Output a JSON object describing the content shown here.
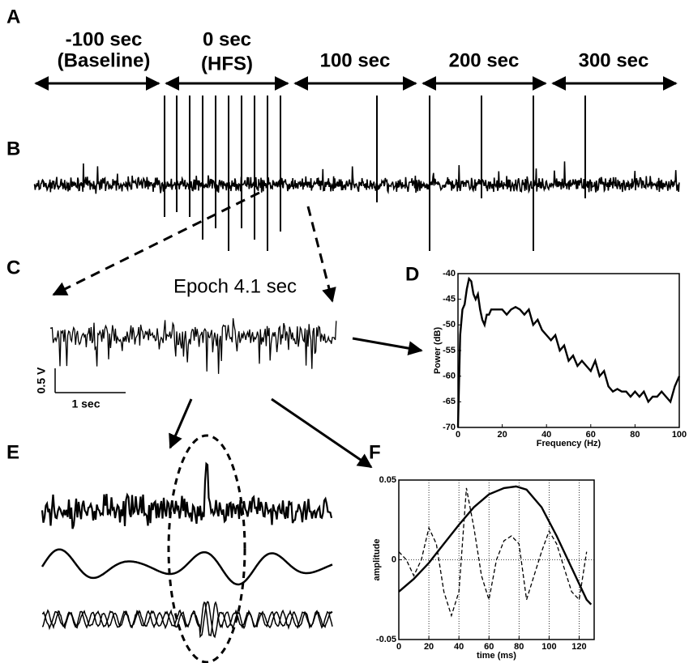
{
  "panel_labels": [
    "A",
    "B",
    "C",
    "D",
    "E",
    "F"
  ],
  "periods": [
    [
      "-100 sec",
      "(Baseline)"
    ],
    [
      "0 sec",
      "(HFS)"
    ],
    [
      "100 sec"
    ],
    [
      "200 sec"
    ],
    [
      "300 sec"
    ]
  ],
  "epoch_label": "Epoch 4.1 sec",
  "scale_bar": {
    "y": "0.5 V",
    "x": "1 sec"
  },
  "chart_data": [
    {
      "type": "line",
      "ylabel": "Power (dB)",
      "xlabel": "Frequency (Hz)",
      "xlim": [
        0,
        100
      ],
      "ylim": [
        -70,
        -40
      ],
      "xticks": [
        0,
        20,
        40,
        60,
        80,
        100
      ],
      "yticks": [
        -70,
        -65,
        -60,
        -55,
        -50,
        -45,
        -40
      ],
      "grid": false,
      "series": [
        {
          "color": "#000000",
          "linestyle": "solid",
          "x": [
            0,
            1,
            2,
            3,
            4,
            5,
            6,
            7,
            8,
            9,
            10,
            11,
            12,
            13,
            14,
            15,
            17,
            20,
            22,
            24,
            26,
            28,
            30,
            32,
            34,
            36,
            38,
            40,
            42,
            44,
            46,
            48,
            50,
            52,
            54,
            56,
            58,
            60,
            62,
            64,
            66,
            68,
            70,
            72,
            74,
            76,
            78,
            80,
            82,
            84,
            86,
            88,
            90,
            92,
            94,
            96,
            98,
            100
          ],
          "values": [
            -70,
            -52,
            -47,
            -46,
            -43,
            -41,
            -41.5,
            -44,
            -45,
            -44,
            -47,
            -49,
            -50,
            -48,
            -48,
            -47,
            -47,
            -47,
            -48,
            -47,
            -46.5,
            -47,
            -48,
            -47,
            -50,
            -49,
            -51,
            -52,
            -53,
            -52,
            -55,
            -54,
            -57,
            -56,
            -58,
            -57,
            -58,
            -59,
            -57,
            -60,
            -59,
            -62,
            -63,
            -62.5,
            -63,
            -63,
            -64,
            -63,
            -64,
            -63,
            -65,
            -64,
            -64,
            -63,
            -64,
            -65,
            -62,
            -60
          ]
        }
      ]
    },
    {
      "type": "line",
      "ylabel": "amplitude",
      "xlabel": "time (ms)",
      "xlim": [
        0,
        130
      ],
      "ylim": [
        -0.05,
        0.05
      ],
      "xticks": [
        0,
        20,
        40,
        60,
        80,
        100,
        120
      ],
      "yticks": [
        -0.05,
        0,
        0.05
      ],
      "grid": true,
      "series": [
        {
          "color": "#000000",
          "linestyle": "solid",
          "x": [
            0,
            10,
            20,
            30,
            40,
            50,
            60,
            70,
            78,
            85,
            95,
            105,
            115,
            125,
            128
          ],
          "values": [
            -0.02,
            -0.012,
            -0.002,
            0.01,
            0.022,
            0.033,
            0.041,
            0.045,
            0.046,
            0.044,
            0.033,
            0.015,
            -0.005,
            -0.025,
            -0.028
          ]
        },
        {
          "color": "#000000",
          "linestyle": "dashed",
          "x": [
            0,
            5,
            10,
            15,
            20,
            25,
            30,
            35,
            40,
            45,
            50,
            55,
            60,
            65,
            70,
            75,
            80,
            85,
            90,
            95,
            100,
            105,
            110,
            115,
            120,
            125
          ],
          "values": [
            0.005,
            0,
            -0.01,
            0,
            0.02,
            0.01,
            -0.02,
            -0.035,
            -0.02,
            0.045,
            0.02,
            -0.01,
            -0.025,
            0,
            0.012,
            0.015,
            0.01,
            -0.025,
            -0.01,
            0.005,
            0.018,
            0.01,
            -0.005,
            -0.02,
            -0.025,
            0.005
          ]
        }
      ]
    }
  ]
}
